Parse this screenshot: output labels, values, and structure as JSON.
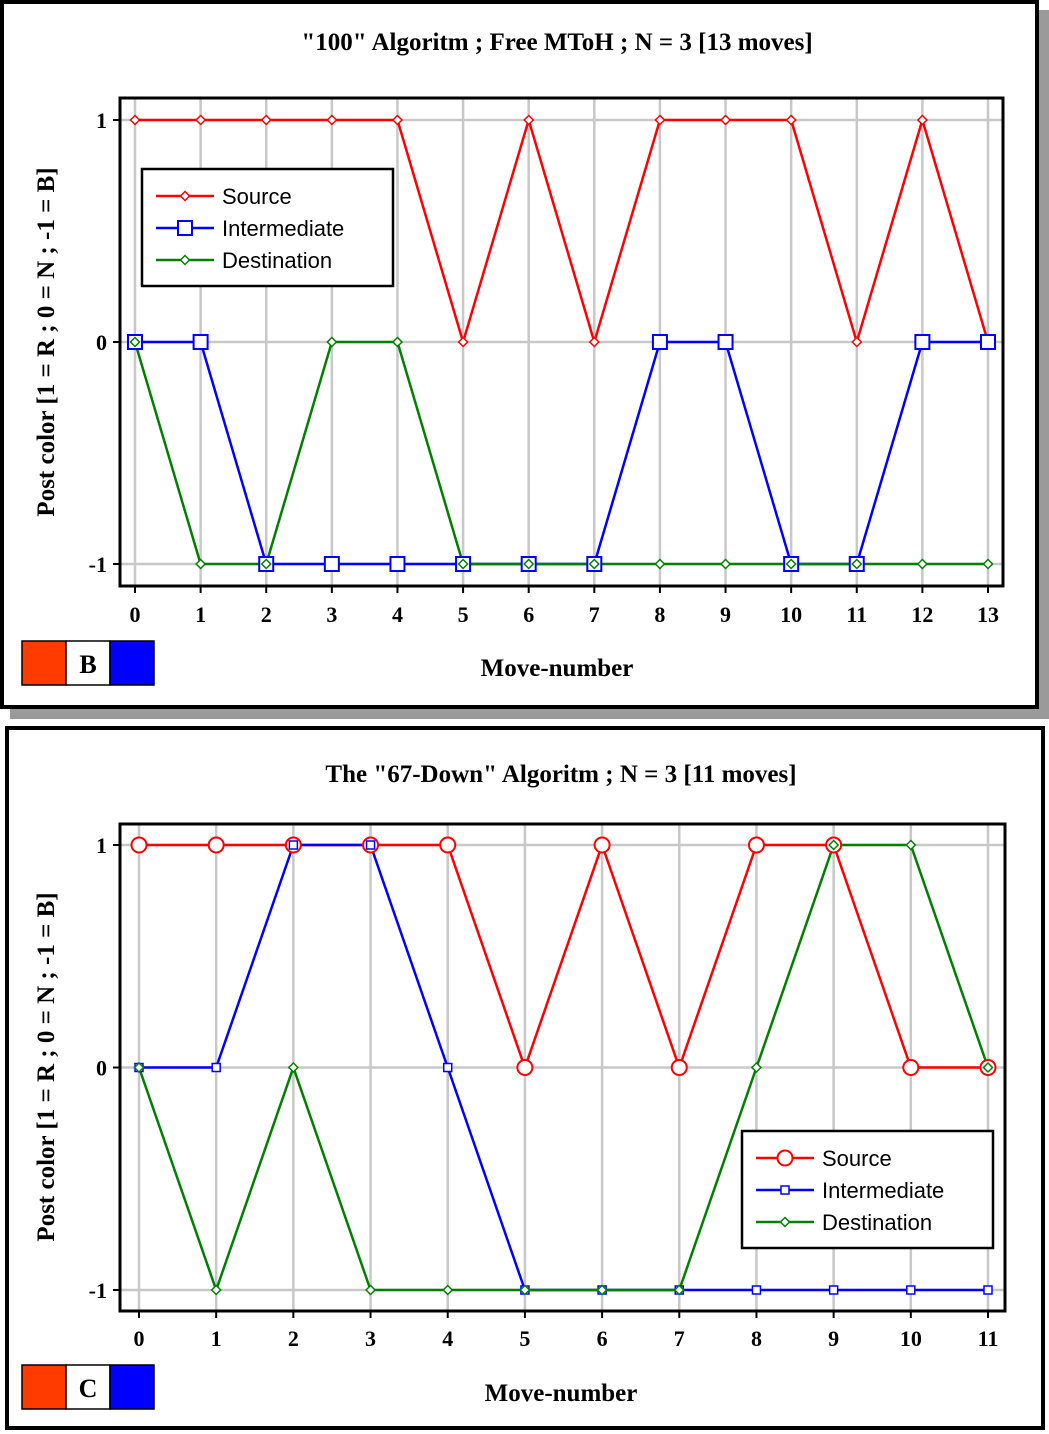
{
  "chart_data": [
    {
      "type": "line",
      "title": "\"100\" Algoritm ; Free MToH ; N = 3 [13 moves]",
      "xlabel": "Move-number",
      "ylabel": "Post color [1 = R ; 0 = N ; -1 = B]",
      "xlim": [
        0,
        13
      ],
      "ylim": [
        -1,
        1
      ],
      "xticks": [
        "0",
        "1",
        "2",
        "3",
        "4",
        "5",
        "6",
        "7",
        "8",
        "9",
        "10",
        "11",
        "12",
        "13"
      ],
      "yticks": [
        "1",
        "0",
        "-1"
      ],
      "grid": true,
      "legend_position": "top-left",
      "badge": {
        "label": "B",
        "colors": [
          "#ff3b00",
          "#ffffff",
          "#0000ff"
        ]
      },
      "series": [
        {
          "name": "Source",
          "color": "#ff0000",
          "marker": "diamond-small",
          "x": [
            0,
            1,
            2,
            3,
            4,
            5,
            6,
            7,
            8,
            9,
            10,
            11,
            12,
            13
          ],
          "y": [
            1,
            1,
            1,
            1,
            1,
            0,
            1,
            0,
            1,
            1,
            1,
            0,
            1,
            0
          ]
        },
        {
          "name": "Intermediate",
          "color": "#0000ff",
          "marker": "square-large",
          "x": [
            0,
            1,
            2,
            3,
            4,
            5,
            6,
            7,
            8,
            9,
            10,
            11,
            12,
            13
          ],
          "y": [
            0,
            0,
            -1,
            -1,
            -1,
            -1,
            -1,
            -1,
            0,
            0,
            -1,
            -1,
            0,
            0
          ]
        },
        {
          "name": "Destination",
          "color": "#008000",
          "marker": "diamond-small",
          "x": [
            0,
            1,
            2,
            3,
            4,
            5,
            6,
            7,
            8,
            9,
            10,
            11,
            12,
            13
          ],
          "y": [
            0,
            -1,
            -1,
            0,
            0,
            -1,
            -1,
            -1,
            -1,
            -1,
            -1,
            -1,
            -1,
            -1
          ]
        }
      ]
    },
    {
      "type": "line",
      "title": "The \"67-Down\" Algoritm ; N = 3 [11 moves]",
      "xlabel": "Move-number",
      "ylabel": "Post color [1 = R ; 0 = N ; -1 = B]",
      "xlim": [
        0,
        11
      ],
      "ylim": [
        -1,
        1
      ],
      "xticks": [
        "0",
        "1",
        "2",
        "3",
        "4",
        "5",
        "6",
        "7",
        "8",
        "9",
        "10",
        "11"
      ],
      "yticks": [
        "1",
        "0",
        "-1"
      ],
      "grid": true,
      "legend_position": "bottom-right",
      "badge": {
        "label": "C",
        "colors": [
          "#ff3b00",
          "#ffffff",
          "#0000ff"
        ]
      },
      "series": [
        {
          "name": "Source",
          "color": "#ff0000",
          "marker": "circle-large",
          "x": [
            0,
            1,
            2,
            3,
            4,
            5,
            6,
            7,
            8,
            9,
            10,
            11
          ],
          "y": [
            1,
            1,
            1,
            1,
            1,
            0,
            1,
            0,
            1,
            1,
            0,
            0
          ]
        },
        {
          "name": "Intermediate",
          "color": "#0000ff",
          "marker": "square-small",
          "x": [
            0,
            1,
            2,
            3,
            4,
            5,
            6,
            7,
            8,
            9,
            10,
            11
          ],
          "y": [
            0,
            0,
            1,
            1,
            0,
            -1,
            -1,
            -1,
            -1,
            -1,
            -1,
            -1
          ]
        },
        {
          "name": "Destination",
          "color": "#008000",
          "marker": "diamond-small",
          "x": [
            0,
            1,
            2,
            3,
            4,
            5,
            6,
            7,
            8,
            9,
            10,
            11
          ],
          "y": [
            0,
            -1,
            0,
            -1,
            -1,
            -1,
            -1,
            -1,
            0,
            1,
            1,
            0
          ]
        }
      ]
    }
  ]
}
